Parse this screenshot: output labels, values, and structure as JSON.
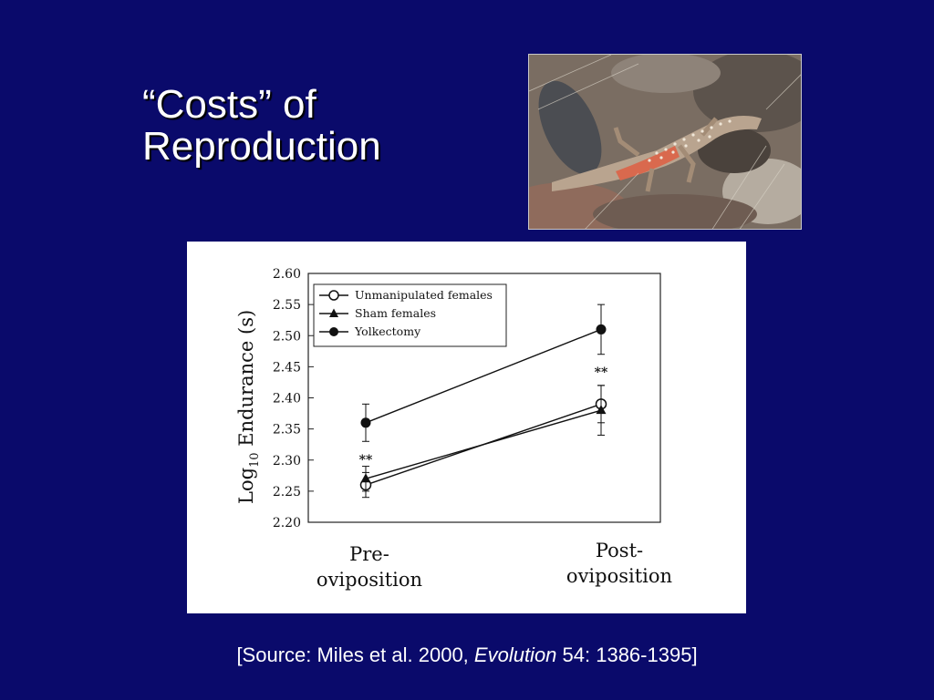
{
  "slide": {
    "title_line1": "“Costs” of",
    "title_line2": "Reproduction",
    "source_prefix": "[Source: Miles et al.  2000, ",
    "source_journal": "Evolution",
    "source_suffix": " 54: 1386-1395]",
    "background_color": "#0a0a6b"
  },
  "photo": {
    "subject": "lizard-photo"
  },
  "chart_data": {
    "type": "line",
    "categories": [
      "Pre-\noviposition",
      "Post-\noviposition"
    ],
    "category_lines": [
      [
        "Pre-",
        "oviposition"
      ],
      [
        "Post-",
        "oviposition"
      ]
    ],
    "ylabel_main": "Log",
    "ylabel_sub": "10",
    "ylabel_rest": " Endurance (s)",
    "ylim": [
      2.2,
      2.6
    ],
    "yticks": [
      "2.60",
      "2.55",
      "2.50",
      "2.45",
      "2.40",
      "2.35",
      "2.30",
      "2.25",
      "2.20"
    ],
    "ytick_values": [
      2.6,
      2.55,
      2.5,
      2.45,
      2.4,
      2.35,
      2.3,
      2.25,
      2.2
    ],
    "legend_position": "top-left",
    "series": [
      {
        "name": "Unmanipulated females",
        "marker": "open-circle",
        "values": [
          2.26,
          2.39
        ],
        "err": [
          0.02,
          0.03
        ]
      },
      {
        "name": "Sham females",
        "marker": "triangle",
        "values": [
          2.27,
          2.38
        ],
        "err": [
          0.02,
          0.04
        ]
      },
      {
        "name": "Yolkectomy",
        "marker": "filled-circle",
        "values": [
          2.36,
          2.51
        ],
        "err": [
          0.03,
          0.04
        ]
      }
    ],
    "annotations": [
      {
        "text": "**",
        "category": 0,
        "y": 2.3
      },
      {
        "text": "**",
        "category": 1,
        "y": 2.44
      }
    ]
  }
}
